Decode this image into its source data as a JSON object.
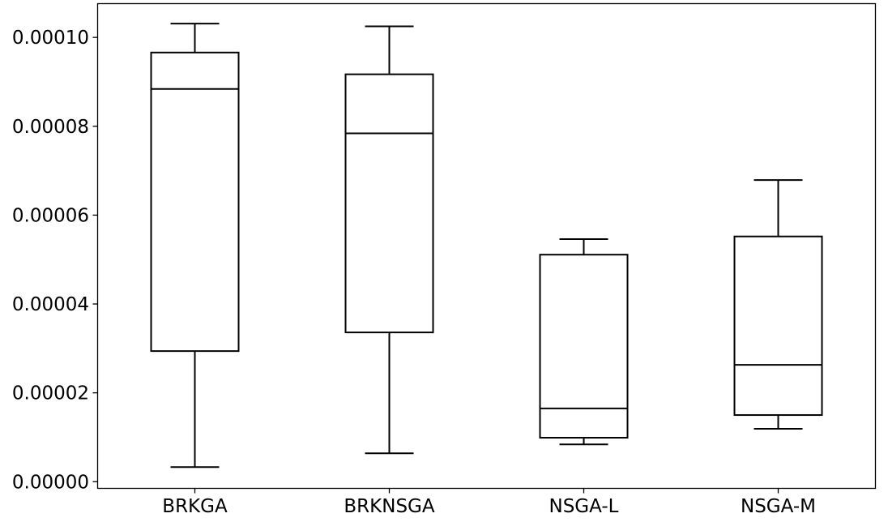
{
  "chart_data": {
    "type": "box",
    "title": "",
    "xlabel": "",
    "ylabel": "",
    "categories": [
      "BRKGA",
      "BRKNSGA",
      "NSGA-L",
      "NSGA-M"
    ],
    "boxes": [
      {
        "label": "BRKGA",
        "whisker_low": 3.3e-06,
        "q1": 2.94e-05,
        "median": 8.84e-05,
        "q3": 9.66e-05,
        "whisker_high": 0.0001031
      },
      {
        "label": "BRKNSGA",
        "whisker_low": 6.4e-06,
        "q1": 3.36e-05,
        "median": 7.84e-05,
        "q3": 9.17e-05,
        "whisker_high": 0.0001025
      },
      {
        "label": "NSGA-L",
        "whisker_low": 8.4e-06,
        "q1": 9.9e-06,
        "median": 1.65e-05,
        "q3": 5.11e-05,
        "whisker_high": 5.46e-05
      },
      {
        "label": "NSGA-M",
        "whisker_low": 1.19e-05,
        "q1": 1.5e-05,
        "median": 2.63e-05,
        "q3": 5.52e-05,
        "whisker_high": 6.79e-05
      }
    ],
    "yticks": [
      0,
      2e-05,
      4e-05,
      6e-05,
      8e-05,
      0.0001
    ],
    "ytick_labels": [
      "0.00000",
      "0.00002",
      "0.00004",
      "0.00006",
      "0.00008",
      "0.00010"
    ],
    "ylim": [
      -1.5e-06,
      0.0001076
    ],
    "grid": false,
    "legend": "none",
    "colors": {
      "box": "#000000",
      "background": "#ffffff",
      "axes": "#000000"
    }
  }
}
